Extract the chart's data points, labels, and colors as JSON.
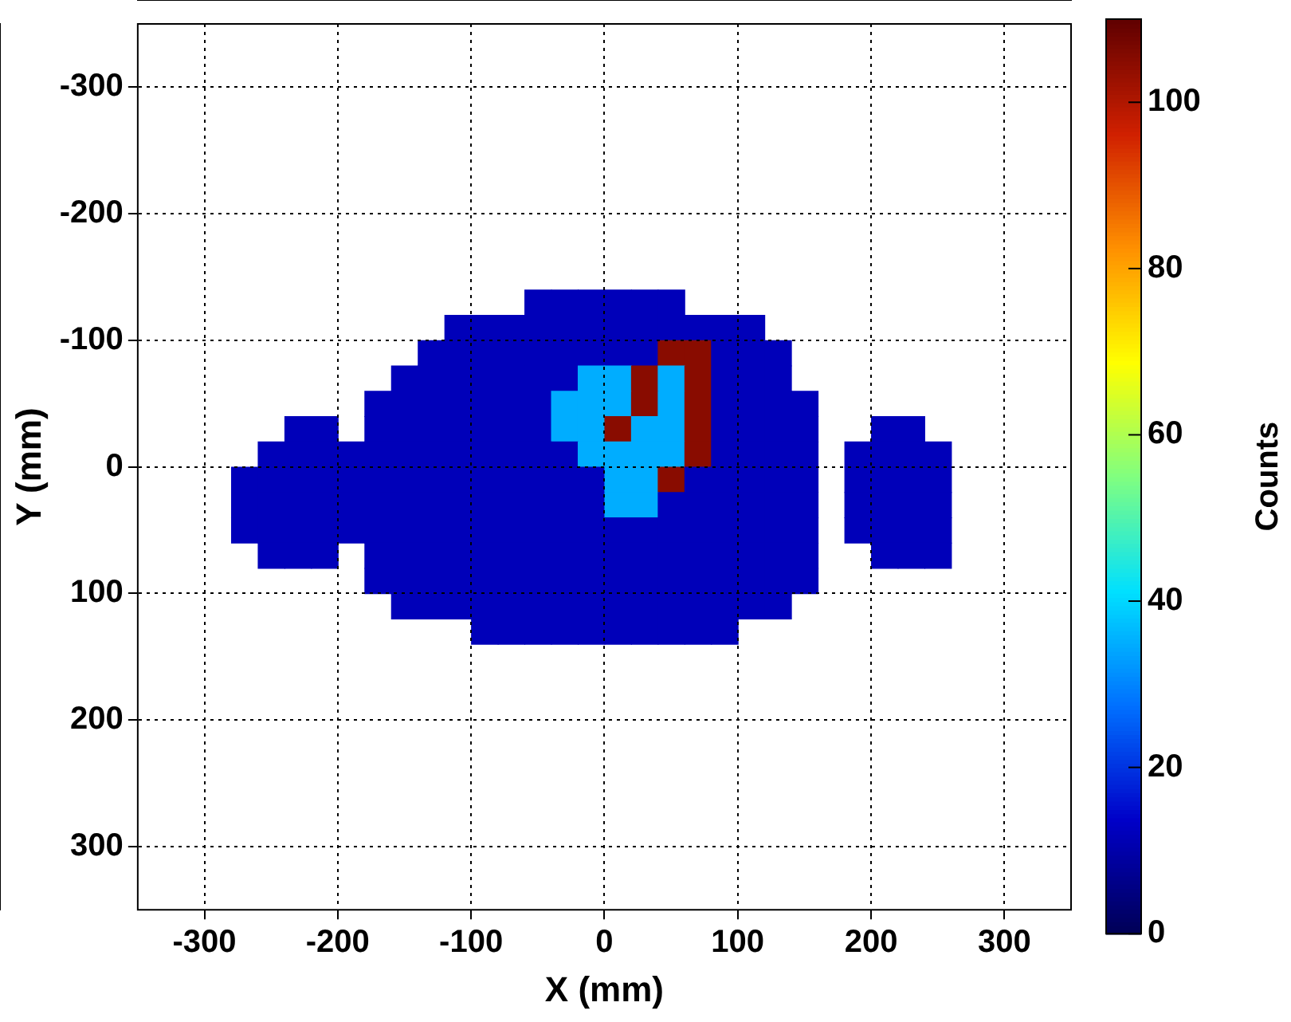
{
  "chart_data": {
    "type": "heatmap",
    "xlabel": "X (mm)",
    "ylabel": "Y (mm)",
    "clabel": "Counts",
    "xlim": [
      -350,
      350
    ],
    "ylim": [
      350,
      -350
    ],
    "xticks": [
      -300,
      -200,
      -100,
      0,
      100,
      200,
      300
    ],
    "yticks": [
      -300,
      -200,
      -100,
      0,
      100,
      200,
      300
    ],
    "grid": true,
    "clim": [
      0,
      110
    ],
    "cticks": [
      0,
      20,
      40,
      60,
      80,
      100
    ],
    "colors": [
      "#000055",
      "#0000c8",
      "#0070ff",
      "#00e0ff",
      "#80ff80",
      "#ffff00",
      "#ff9000",
      "#d02000",
      "#600000"
    ],
    "x": [
      -290,
      -270,
      -250,
      -230,
      -210,
      -190,
      -170,
      -150,
      -130,
      -110,
      -90,
      -70,
      -50,
      -30,
      -10,
      10,
      30,
      50,
      70,
      90,
      110,
      130,
      150,
      170,
      190,
      210,
      230,
      250,
      270
    ],
    "y": [
      -130,
      -110,
      -90,
      -70,
      -50,
      -30,
      -10,
      10,
      30,
      50,
      70,
      90,
      110,
      130
    ],
    "cells": [
      [
        null,
        null,
        null,
        null,
        null,
        null,
        null,
        null,
        null,
        null,
        null,
        null,
        12,
        12,
        12,
        12,
        12,
        12,
        null,
        null,
        null,
        null,
        null,
        null,
        null,
        null,
        null,
        null,
        null
      ],
      [
        null,
        null,
        null,
        null,
        null,
        null,
        null,
        null,
        null,
        12,
        12,
        12,
        12,
        12,
        12,
        12,
        12,
        12,
        12,
        12,
        12,
        null,
        null,
        null,
        null,
        null,
        null,
        null,
        null
      ],
      [
        null,
        null,
        null,
        null,
        null,
        null,
        null,
        null,
        12,
        12,
        12,
        12,
        12,
        12,
        12,
        12,
        12,
        105,
        105,
        12,
        12,
        12,
        null,
        null,
        null,
        null,
        null,
        null,
        null
      ],
      [
        null,
        null,
        null,
        null,
        null,
        null,
        null,
        12,
        12,
        12,
        12,
        12,
        12,
        12,
        35,
        35,
        105,
        35,
        105,
        12,
        12,
        12,
        null,
        null,
        null,
        null,
        null,
        null,
        null
      ],
      [
        null,
        null,
        null,
        null,
        null,
        null,
        12,
        12,
        12,
        12,
        12,
        12,
        12,
        35,
        35,
        35,
        105,
        35,
        105,
        12,
        12,
        12,
        12,
        null,
        null,
        null,
        null,
        null,
        null
      ],
      [
        null,
        null,
        null,
        12,
        12,
        null,
        12,
        12,
        12,
        12,
        12,
        12,
        12,
        35,
        35,
        105,
        35,
        35,
        105,
        12,
        12,
        12,
        12,
        null,
        null,
        12,
        12,
        null,
        null
      ],
      [
        null,
        null,
        12,
        12,
        12,
        12,
        12,
        12,
        12,
        12,
        12,
        12,
        12,
        12,
        35,
        35,
        35,
        35,
        105,
        12,
        12,
        12,
        12,
        null,
        12,
        12,
        12,
        12,
        null
      ],
      [
        null,
        12,
        12,
        12,
        12,
        12,
        12,
        12,
        12,
        12,
        12,
        12,
        12,
        12,
        12,
        35,
        35,
        105,
        12,
        12,
        12,
        12,
        12,
        null,
        12,
        12,
        12,
        12,
        null
      ],
      [
        null,
        12,
        12,
        12,
        12,
        12,
        12,
        12,
        12,
        12,
        12,
        12,
        12,
        12,
        12,
        35,
        35,
        12,
        12,
        12,
        12,
        12,
        12,
        null,
        12,
        12,
        12,
        12,
        null
      ],
      [
        null,
        12,
        12,
        12,
        12,
        12,
        12,
        12,
        12,
        12,
        12,
        12,
        12,
        12,
        12,
        12,
        12,
        12,
        12,
        12,
        12,
        12,
        12,
        null,
        12,
        12,
        12,
        12,
        null
      ],
      [
        null,
        null,
        12,
        12,
        12,
        null,
        12,
        12,
        12,
        12,
        12,
        12,
        12,
        12,
        12,
        12,
        12,
        12,
        12,
        12,
        12,
        12,
        12,
        null,
        null,
        12,
        12,
        12,
        null
      ],
      [
        null,
        null,
        null,
        null,
        null,
        null,
        12,
        12,
        12,
        12,
        12,
        12,
        12,
        12,
        12,
        12,
        12,
        12,
        12,
        12,
        12,
        12,
        12,
        null,
        null,
        null,
        null,
        null,
        null
      ],
      [
        null,
        null,
        null,
        null,
        null,
        null,
        null,
        12,
        12,
        12,
        12,
        12,
        12,
        12,
        12,
        12,
        12,
        12,
        12,
        12,
        12,
        12,
        null,
        null,
        null,
        null,
        null,
        null,
        null
      ],
      [
        null,
        null,
        null,
        null,
        null,
        null,
        null,
        null,
        null,
        null,
        12,
        12,
        12,
        12,
        12,
        12,
        12,
        12,
        12,
        12,
        null,
        null,
        null,
        null,
        null,
        null,
        null,
        null,
        null
      ]
    ]
  }
}
